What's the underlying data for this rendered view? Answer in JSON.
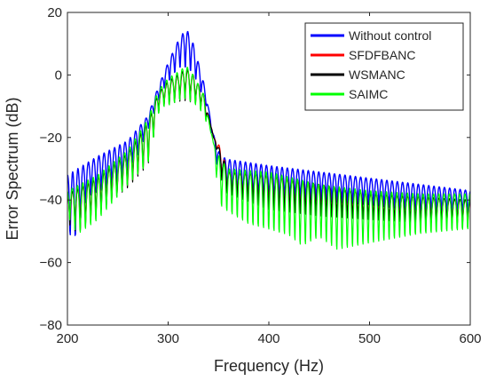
{
  "chart_data": {
    "type": "line",
    "title": "",
    "xlabel": "Frequency (Hz)",
    "ylabel": "Error Spectrum (dB)",
    "xlim": [
      200,
      600
    ],
    "ylim": [
      -80,
      20
    ],
    "xticks": [
      200,
      300,
      400,
      500,
      600
    ],
    "yticks": [
      -80,
      -60,
      -40,
      -20,
      0,
      20
    ],
    "xtick_labels": [
      "200",
      "300",
      "400",
      "500",
      "600"
    ],
    "ytick_labels": [
      "−80",
      "−60",
      "−40",
      "−20",
      "0",
      "20"
    ],
    "grid": false,
    "legend_position": "top-right",
    "ripple_spacing_hz": 5.2,
    "series": [
      {
        "name": "Without control",
        "color": "#0000ff",
        "upper_envelope": [
          [
            200,
            -32
          ],
          [
            230,
            -26
          ],
          [
            260,
            -21
          ],
          [
            280,
            -13
          ],
          [
            290,
            -4
          ],
          [
            300,
            4
          ],
          [
            310,
            11
          ],
          [
            318,
            15
          ],
          [
            325,
            10
          ],
          [
            335,
            -2
          ],
          [
            345,
            -19
          ],
          [
            352,
            -26
          ],
          [
            360,
            -27
          ],
          [
            400,
            -29
          ],
          [
            450,
            -31
          ],
          [
            500,
            -33
          ],
          [
            550,
            -35
          ],
          [
            600,
            -37
          ]
        ],
        "lower_envelope": [
          [
            200,
            -45
          ],
          [
            204,
            -62
          ],
          [
            220,
            -42
          ],
          [
            250,
            -38
          ],
          [
            270,
            -28
          ],
          [
            285,
            -14
          ],
          [
            295,
            -6
          ],
          [
            310,
            0
          ],
          [
            325,
            -2
          ],
          [
            340,
            -12
          ],
          [
            348,
            -30
          ],
          [
            360,
            -40
          ],
          [
            400,
            -42
          ],
          [
            450,
            -43
          ],
          [
            500,
            -44
          ],
          [
            550,
            -46
          ],
          [
            600,
            -46
          ]
        ]
      },
      {
        "name": "SFDFBANC",
        "color": "#ff0000",
        "upper_envelope": [
          [
            200,
            -38
          ],
          [
            230,
            -33
          ],
          [
            260,
            -25
          ],
          [
            280,
            -15
          ],
          [
            290,
            -6
          ],
          [
            300,
            -2
          ],
          [
            310,
            0
          ],
          [
            318,
            2
          ],
          [
            325,
            0
          ],
          [
            335,
            -6
          ],
          [
            345,
            -20
          ],
          [
            350,
            -22
          ],
          [
            360,
            -31
          ],
          [
            400,
            -32
          ],
          [
            450,
            -35
          ],
          [
            500,
            -38
          ],
          [
            550,
            -39
          ],
          [
            600,
            -40
          ]
        ],
        "lower_envelope": [
          [
            200,
            -48
          ],
          [
            210,
            -52
          ],
          [
            230,
            -45
          ],
          [
            260,
            -37
          ],
          [
            280,
            -30
          ],
          [
            292,
            -10
          ],
          [
            300,
            -10
          ],
          [
            315,
            -9
          ],
          [
            330,
            -10
          ],
          [
            345,
            -18
          ],
          [
            355,
            -38
          ],
          [
            400,
            -44
          ],
          [
            450,
            -46
          ],
          [
            500,
            -47
          ],
          [
            550,
            -48
          ],
          [
            600,
            -48
          ]
        ]
      },
      {
        "name": "WSMANC",
        "color": "#000000",
        "upper_envelope": [
          [
            200,
            -38
          ],
          [
            230,
            -33
          ],
          [
            260,
            -25
          ],
          [
            280,
            -15
          ],
          [
            290,
            -6
          ],
          [
            300,
            -2
          ],
          [
            310,
            0
          ],
          [
            318,
            2
          ],
          [
            325,
            0
          ],
          [
            335,
            -6
          ],
          [
            345,
            -20
          ],
          [
            350,
            -23
          ],
          [
            360,
            -31
          ],
          [
            400,
            -32
          ],
          [
            450,
            -35
          ],
          [
            500,
            -38
          ],
          [
            550,
            -39
          ],
          [
            600,
            -40
          ]
        ],
        "lower_envelope": [
          [
            200,
            -48
          ],
          [
            210,
            -52
          ],
          [
            230,
            -45
          ],
          [
            260,
            -37
          ],
          [
            280,
            -30
          ],
          [
            292,
            -10
          ],
          [
            300,
            -10
          ],
          [
            315,
            -9
          ],
          [
            330,
            -10
          ],
          [
            345,
            -18
          ],
          [
            355,
            -38
          ],
          [
            400,
            -44
          ],
          [
            450,
            -46
          ],
          [
            500,
            -47
          ],
          [
            550,
            -48
          ],
          [
            600,
            -48
          ]
        ]
      },
      {
        "name": "SAIMC",
        "color": "#00ff00",
        "upper_envelope": [
          [
            200,
            -37
          ],
          [
            230,
            -32
          ],
          [
            260,
            -24
          ],
          [
            280,
            -14
          ],
          [
            290,
            -5
          ],
          [
            300,
            -1
          ],
          [
            310,
            1
          ],
          [
            318,
            3
          ],
          [
            325,
            0
          ],
          [
            335,
            -6
          ],
          [
            345,
            -22
          ],
          [
            352,
            -27
          ],
          [
            360,
            -30
          ],
          [
            400,
            -31
          ],
          [
            450,
            -35
          ],
          [
            500,
            -37
          ],
          [
            550,
            -38
          ],
          [
            600,
            -38
          ]
        ],
        "lower_envelope": [
          [
            200,
            -47
          ],
          [
            210,
            -55
          ],
          [
            230,
            -50
          ],
          [
            260,
            -38
          ],
          [
            280,
            -32
          ],
          [
            292,
            -12
          ],
          [
            300,
            -12
          ],
          [
            315,
            -10
          ],
          [
            330,
            -12
          ],
          [
            345,
            -20
          ],
          [
            350,
            -45
          ],
          [
            380,
            -52
          ],
          [
            400,
            -54
          ],
          [
            420,
            -56
          ],
          [
            433,
            -60
          ],
          [
            450,
            -56
          ],
          [
            468,
            -61
          ],
          [
            500,
            -58
          ],
          [
            550,
            -54
          ],
          [
            600,
            -52
          ]
        ]
      }
    ]
  }
}
